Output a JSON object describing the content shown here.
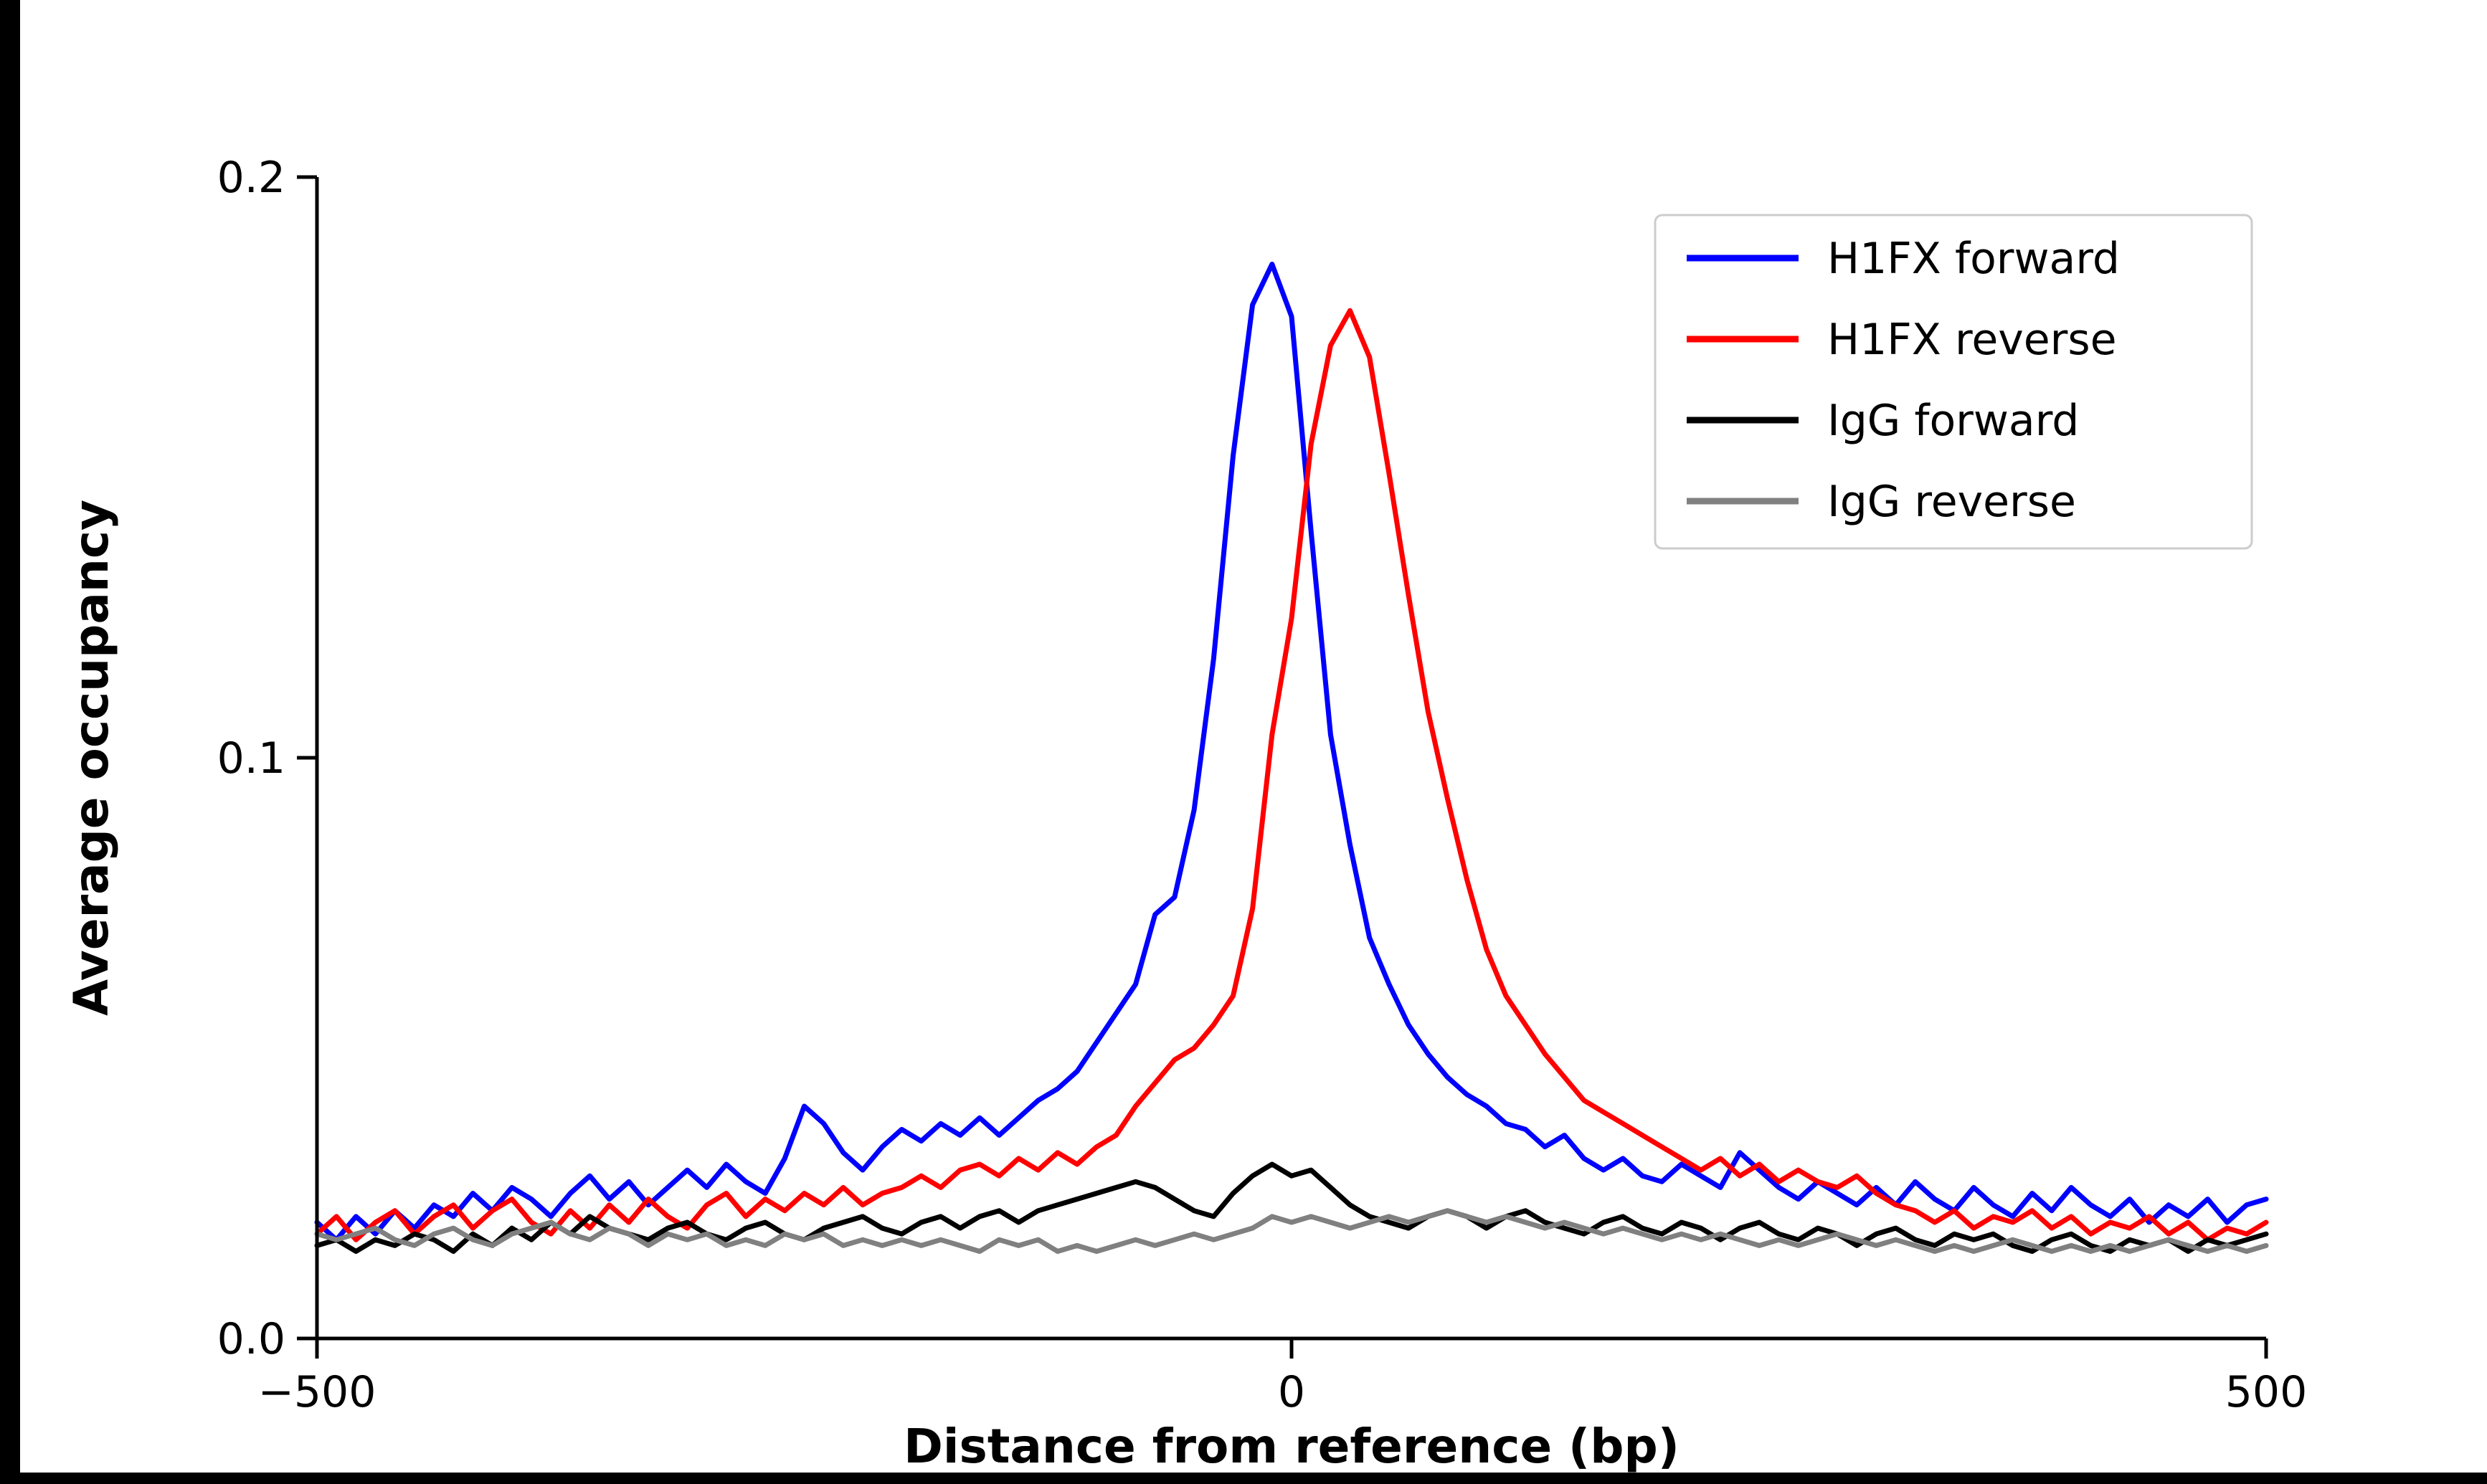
{
  "colors": {
    "figure_background": "#ffffff",
    "outer_background": "#000000",
    "legend_border": "#cccccc"
  },
  "chart_data": {
    "type": "line",
    "title": "",
    "xlabel": "Distance from reference (bp)",
    "ylabel": "Average occupancy",
    "xlim": [
      -500,
      500
    ],
    "ylim": [
      0,
      0.2
    ],
    "grid": false,
    "legend_position": "upper right",
    "xticks": [
      {
        "value": -500,
        "label": "−500"
      },
      {
        "value": 0,
        "label": "0"
      },
      {
        "value": 500,
        "label": "500"
      }
    ],
    "yticks": [
      {
        "value": 0.0,
        "label": "0.0"
      },
      {
        "value": 0.1,
        "label": "0.1"
      },
      {
        "value": 0.2,
        "label": "0.2"
      }
    ],
    "x": [
      -500,
      -490,
      -480,
      -470,
      -460,
      -450,
      -440,
      -430,
      -420,
      -410,
      -400,
      -390,
      -380,
      -370,
      -360,
      -350,
      -340,
      -330,
      -320,
      -310,
      -300,
      -290,
      -280,
      -270,
      -260,
      -250,
      -240,
      -230,
      -220,
      -210,
      -200,
      -190,
      -180,
      -170,
      -160,
      -150,
      -140,
      -130,
      -120,
      -110,
      -100,
      -90,
      -80,
      -70,
      -60,
      -50,
      -40,
      -30,
      -20,
      -10,
      0,
      10,
      20,
      30,
      40,
      50,
      60,
      70,
      80,
      90,
      100,
      110,
      120,
      130,
      140,
      150,
      160,
      170,
      180,
      190,
      200,
      210,
      220,
      230,
      240,
      250,
      260,
      270,
      280,
      290,
      300,
      310,
      320,
      330,
      340,
      350,
      360,
      370,
      380,
      390,
      400,
      410,
      420,
      430,
      440,
      450,
      460,
      470,
      480,
      490,
      500
    ],
    "series": [
      {
        "name": "H1FX forward",
        "color": "#0000ff",
        "values": [
          0.02,
          0.017,
          0.021,
          0.018,
          0.022,
          0.019,
          0.023,
          0.021,
          0.025,
          0.022,
          0.026,
          0.024,
          0.021,
          0.025,
          0.028,
          0.024,
          0.027,
          0.023,
          0.026,
          0.029,
          0.026,
          0.03,
          0.027,
          0.025,
          0.031,
          0.04,
          0.037,
          0.032,
          0.029,
          0.033,
          0.036,
          0.034,
          0.037,
          0.035,
          0.038,
          0.035,
          0.038,
          0.041,
          0.043,
          0.046,
          0.051,
          0.056,
          0.061,
          0.073,
          0.076,
          0.091,
          0.117,
          0.152,
          0.178,
          0.185,
          0.176,
          0.139,
          0.104,
          0.085,
          0.069,
          0.061,
          0.054,
          0.049,
          0.045,
          0.042,
          0.04,
          0.037,
          0.036,
          0.033,
          0.035,
          0.031,
          0.029,
          0.031,
          0.028,
          0.027,
          0.03,
          0.028,
          0.026,
          0.032,
          0.029,
          0.026,
          0.024,
          0.027,
          0.025,
          0.023,
          0.026,
          0.023,
          0.027,
          0.024,
          0.022,
          0.026,
          0.023,
          0.021,
          0.025,
          0.022,
          0.026,
          0.023,
          0.021,
          0.024,
          0.02,
          0.023,
          0.021,
          0.024,
          0.02,
          0.023,
          0.024
        ]
      },
      {
        "name": "H1FX reverse",
        "color": "#ff0000",
        "values": [
          0.018,
          0.021,
          0.017,
          0.02,
          0.022,
          0.018,
          0.021,
          0.023,
          0.019,
          0.022,
          0.024,
          0.02,
          0.018,
          0.022,
          0.019,
          0.023,
          0.02,
          0.024,
          0.021,
          0.019,
          0.023,
          0.025,
          0.021,
          0.024,
          0.022,
          0.025,
          0.023,
          0.026,
          0.023,
          0.025,
          0.026,
          0.028,
          0.026,
          0.029,
          0.03,
          0.028,
          0.031,
          0.029,
          0.032,
          0.03,
          0.033,
          0.035,
          0.04,
          0.044,
          0.048,
          0.05,
          0.054,
          0.059,
          0.074,
          0.104,
          0.124,
          0.154,
          0.171,
          0.177,
          0.169,
          0.149,
          0.128,
          0.108,
          0.093,
          0.079,
          0.067,
          0.059,
          0.054,
          0.049,
          0.045,
          0.041,
          0.039,
          0.037,
          0.035,
          0.033,
          0.031,
          0.029,
          0.031,
          0.028,
          0.03,
          0.027,
          0.029,
          0.027,
          0.026,
          0.028,
          0.025,
          0.023,
          0.022,
          0.02,
          0.022,
          0.019,
          0.021,
          0.02,
          0.022,
          0.019,
          0.021,
          0.018,
          0.02,
          0.019,
          0.021,
          0.018,
          0.02,
          0.017,
          0.019,
          0.018,
          0.02
        ]
      },
      {
        "name": "IgG forward",
        "color": "#000000",
        "values": [
          0.016,
          0.017,
          0.015,
          0.017,
          0.016,
          0.018,
          0.017,
          0.015,
          0.018,
          0.016,
          0.019,
          0.017,
          0.02,
          0.018,
          0.021,
          0.019,
          0.018,
          0.017,
          0.019,
          0.02,
          0.018,
          0.017,
          0.019,
          0.02,
          0.018,
          0.017,
          0.019,
          0.02,
          0.021,
          0.019,
          0.018,
          0.02,
          0.021,
          0.019,
          0.021,
          0.022,
          0.02,
          0.022,
          0.023,
          0.024,
          0.025,
          0.026,
          0.027,
          0.026,
          0.024,
          0.022,
          0.021,
          0.025,
          0.028,
          0.03,
          0.028,
          0.029,
          0.026,
          0.023,
          0.021,
          0.02,
          0.019,
          0.021,
          0.022,
          0.021,
          0.019,
          0.021,
          0.022,
          0.02,
          0.019,
          0.018,
          0.02,
          0.021,
          0.019,
          0.018,
          0.02,
          0.019,
          0.017,
          0.019,
          0.02,
          0.018,
          0.017,
          0.019,
          0.018,
          0.016,
          0.018,
          0.019,
          0.017,
          0.016,
          0.018,
          0.017,
          0.018,
          0.016,
          0.015,
          0.017,
          0.018,
          0.016,
          0.015,
          0.017,
          0.016,
          0.017,
          0.015,
          0.017,
          0.016,
          0.017,
          0.018
        ]
      },
      {
        "name": "IgG reverse",
        "color": "#808080",
        "values": [
          0.018,
          0.017,
          0.018,
          0.019,
          0.017,
          0.016,
          0.018,
          0.019,
          0.017,
          0.016,
          0.018,
          0.019,
          0.02,
          0.018,
          0.017,
          0.019,
          0.018,
          0.016,
          0.018,
          0.017,
          0.018,
          0.016,
          0.017,
          0.016,
          0.018,
          0.017,
          0.018,
          0.016,
          0.017,
          0.016,
          0.017,
          0.016,
          0.017,
          0.016,
          0.015,
          0.017,
          0.016,
          0.017,
          0.015,
          0.016,
          0.015,
          0.016,
          0.017,
          0.016,
          0.017,
          0.018,
          0.017,
          0.018,
          0.019,
          0.021,
          0.02,
          0.021,
          0.02,
          0.019,
          0.02,
          0.021,
          0.02,
          0.021,
          0.022,
          0.021,
          0.02,
          0.021,
          0.02,
          0.019,
          0.02,
          0.019,
          0.018,
          0.019,
          0.018,
          0.017,
          0.018,
          0.017,
          0.018,
          0.017,
          0.016,
          0.017,
          0.016,
          0.017,
          0.018,
          0.017,
          0.016,
          0.017,
          0.016,
          0.015,
          0.016,
          0.015,
          0.016,
          0.017,
          0.016,
          0.015,
          0.016,
          0.015,
          0.016,
          0.015,
          0.016,
          0.017,
          0.016,
          0.015,
          0.016,
          0.015,
          0.016
        ]
      }
    ]
  }
}
